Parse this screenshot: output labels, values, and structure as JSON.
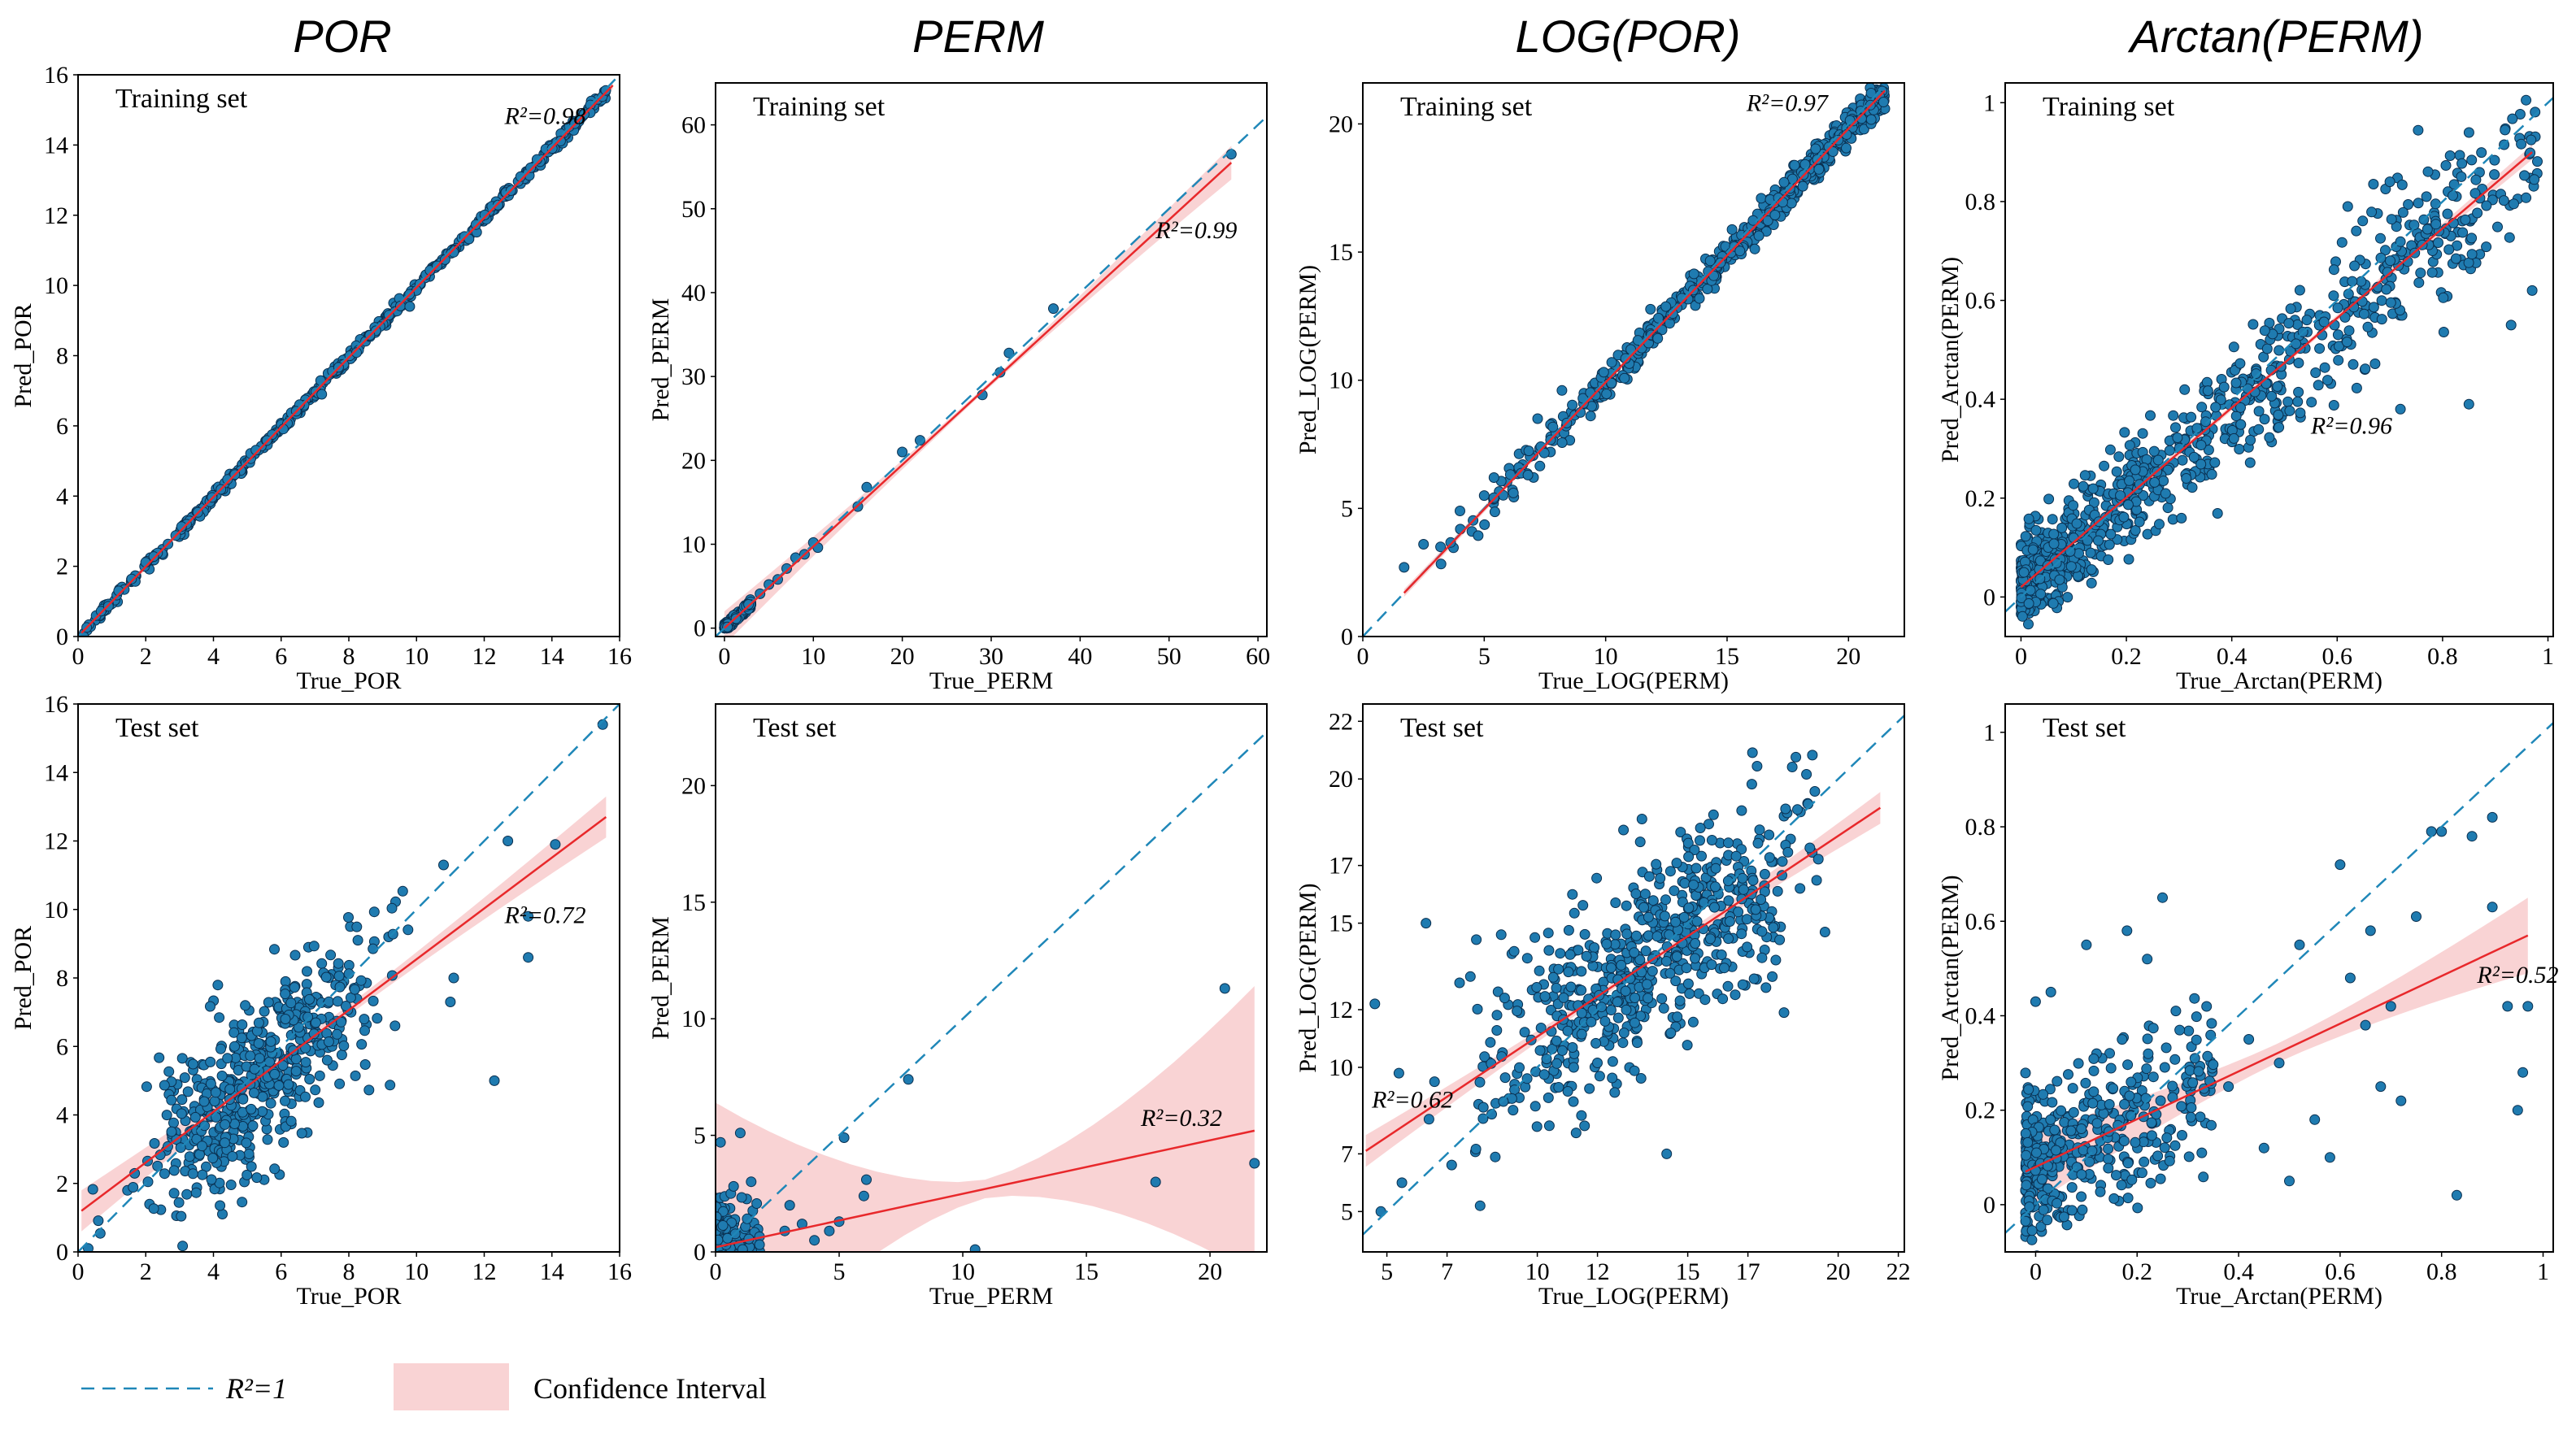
{
  "colors": {
    "point_fill": "#1f7bb0",
    "point_stroke": "#0a2f4f",
    "ideal_line": "#1f87b8",
    "fit_line": "#e8282b",
    "ci_fill": "#f7c4c6"
  },
  "columns": [
    "POR",
    "PERM",
    "LOG(POR)",
    "Arctan(PERM)"
  ],
  "legend": {
    "ideal_label": "R²=1",
    "ci_label": "Confidence Interval"
  },
  "chart_data": [
    {
      "type": "scatter",
      "panel": "Training set",
      "column": "POR",
      "xlabel": "True_POR",
      "ylabel": "Pred_POR",
      "xlim": [
        0,
        16
      ],
      "ylim": [
        0,
        16
      ],
      "xticks": [
        0,
        2,
        4,
        6,
        8,
        10,
        12,
        14,
        16
      ],
      "yticks": [
        0,
        2,
        4,
        6,
        8,
        10,
        12,
        14,
        16
      ],
      "r2": "R²=0.98",
      "r2_pos": [
        12.6,
        14.6
      ],
      "fit": {
        "x": [
          0.1,
          15.8
        ],
        "y": [
          0.1,
          15.7
        ]
      },
      "ci": [
        0.05,
        0.1
      ],
      "gen": {
        "n": 500,
        "xmin": 0.1,
        "xmax": 15.6,
        "noise": 0.08,
        "dist": "uniform",
        "seed": 11
      },
      "points": [
        [
          9.8,
          9.4
        ],
        [
          7.2,
          6.9
        ],
        [
          1.2,
          1.3
        ]
      ]
    },
    {
      "type": "scatter",
      "panel": "Training set",
      "column": "PERM",
      "xlabel": "True_PERM",
      "ylabel": "Pred_PERM",
      "xlim": [
        -1,
        61
      ],
      "ylim": [
        -1,
        65
      ],
      "xticks": [
        0,
        10,
        20,
        30,
        40,
        50,
        60
      ],
      "yticks": [
        0,
        10,
        20,
        30,
        40,
        50,
        60
      ],
      "r2": "R²=0.99",
      "r2_pos": [
        48.5,
        46.5
      ],
      "fit": {
        "x": [
          0,
          57
        ],
        "y": [
          0,
          55.5
        ]
      },
      "ci": [
        0.3,
        2.0
      ],
      "gen": {
        "n": 260,
        "xmin": 0,
        "xmax": 3,
        "noise": 0.25,
        "dist": "low",
        "seed": 22
      },
      "points": [
        [
          4,
          4.1
        ],
        [
          5,
          5.2
        ],
        [
          6,
          5.8
        ],
        [
          7,
          7.1
        ],
        [
          8,
          8.4
        ],
        [
          9,
          8.8
        ],
        [
          10,
          10.2
        ],
        [
          10.5,
          9.6
        ],
        [
          15,
          14.5
        ],
        [
          16,
          16.8
        ],
        [
          20,
          21.0
        ],
        [
          22,
          22.4
        ],
        [
          29,
          27.8
        ],
        [
          31,
          30.5
        ],
        [
          32,
          32.8
        ],
        [
          37,
          38.1
        ],
        [
          57,
          56.5
        ]
      ]
    },
    {
      "type": "scatter",
      "panel": "Training set",
      "column": "LOG(POR)",
      "xlabel": "True_LOG(PERM)",
      "ylabel": "Pred_LOG(PERM)",
      "xlim": [
        0,
        22.3
      ],
      "ylim": [
        0,
        21.6
      ],
      "xticks": [
        0,
        5,
        10,
        15,
        20
      ],
      "yticks": [
        0,
        5,
        10,
        15,
        20
      ],
      "r2": "R²=0.97",
      "r2_pos": [
        15.8,
        20.5
      ],
      "fit": {
        "x": [
          1.7,
          21.5
        ],
        "y": [
          1.7,
          21.3
        ]
      },
      "ci": [
        0.08,
        0.15
      ],
      "gen": {
        "n": 600,
        "xmin": 2.5,
        "xmax": 21.5,
        "noise": 0.35,
        "dist": "high",
        "seed": 33
      },
      "points": [
        [
          1.7,
          2.7
        ],
        [
          2.5,
          3.6
        ],
        [
          3.2,
          3.5
        ],
        [
          4,
          4.9
        ],
        [
          5,
          5.5
        ],
        [
          6.2,
          5.6
        ],
        [
          7.2,
          8.5
        ],
        [
          8.2,
          9.6
        ],
        [
          6.8,
          6.3
        ],
        [
          5.4,
          6.2
        ]
      ]
    },
    {
      "type": "scatter",
      "panel": "Training set",
      "column": "Arctan(PERM)",
      "xlabel": "True_Arctan(PERM)",
      "ylabel": "Pred_Arctan(PERM)",
      "xlim": [
        -0.03,
        1.01
      ],
      "ylim": [
        -0.08,
        1.04
      ],
      "xticks": [
        0.0,
        0.2,
        0.4,
        0.6,
        0.8,
        1.0
      ],
      "yticks": [
        0.0,
        0.2,
        0.4,
        0.6,
        0.8,
        1.0
      ],
      "r2": "R²=0.96",
      "r2_pos": [
        0.55,
        0.33
      ],
      "fit": {
        "x": [
          0.0,
          0.97
        ],
        "y": [
          0.02,
          0.9
        ]
      },
      "ci": [
        0.005,
        0.015
      ],
      "gen": {
        "n": 900,
        "xmin": 0.0,
        "xmax": 0.98,
        "noise": 0.045,
        "noise_slope": 0.05,
        "dist": "low",
        "seed": 44
      },
      "points": [
        [
          0.85,
          0.39
        ],
        [
          0.72,
          0.38
        ],
        [
          0.7,
          0.84
        ],
        [
          0.62,
          0.79
        ],
        [
          0.93,
          0.55
        ],
        [
          0.97,
          0.62
        ]
      ]
    },
    {
      "type": "scatter",
      "panel": "Test set",
      "column": "POR",
      "xlabel": "True_POR",
      "ylabel": "Pred_POR",
      "xlim": [
        0,
        16
      ],
      "ylim": [
        0,
        16
      ],
      "xticks": [
        0,
        2,
        4,
        6,
        8,
        10,
        12,
        14,
        16
      ],
      "yticks": [
        0,
        2,
        4,
        6,
        8,
        10,
        12,
        14,
        16
      ],
      "r2": "R²=0.72",
      "r2_pos": [
        12.6,
        9.6
      ],
      "fit": {
        "x": [
          0.1,
          15.6
        ],
        "y": [
          1.2,
          12.7
        ]
      },
      "ci": [
        0.15,
        0.6
      ],
      "gen": {
        "n": 520,
        "xmin": 0.1,
        "xmax": 10.5,
        "noise": 1.25,
        "dist": "mid",
        "seed": 55
      },
      "points": [
        [
          12.3,
          5.0
        ],
        [
          13.3,
          8.6
        ],
        [
          13.3,
          9.8
        ],
        [
          12.7,
          12.0
        ],
        [
          14.1,
          11.9
        ],
        [
          15.5,
          15.4
        ],
        [
          11.1,
          8.0
        ],
        [
          11.0,
          7.3
        ],
        [
          10.8,
          11.3
        ],
        [
          0.3,
          0.1
        ]
      ]
    },
    {
      "type": "scatter",
      "panel": "Test set",
      "column": "PERM",
      "xlabel": "True_PERM",
      "ylabel": "Pred_PERM",
      "xlim": [
        0,
        22.3
      ],
      "ylim": [
        0,
        23.5
      ],
      "xticks": [
        0,
        5,
        10,
        15,
        20
      ],
      "yticks": [
        0,
        5,
        10,
        15,
        20
      ],
      "r2": "R²=0.32",
      "r2_pos": [
        17.2,
        5.4
      ],
      "fit": {
        "x": [
          0,
          21.8
        ],
        "y": [
          0.2,
          5.2
        ]
      },
      "ci": [
        0.4,
        6.2
      ],
      "gen": {
        "n": 180,
        "xmin": 0,
        "xmax": 1.8,
        "noise": 1.1,
        "dist": "low",
        "seed": 66
      },
      "points": [
        [
          1.0,
          5.1
        ],
        [
          0.2,
          4.7
        ],
        [
          2.8,
          0.9
        ],
        [
          3.0,
          2.0
        ],
        [
          3.5,
          1.2
        ],
        [
          4.0,
          0.5
        ],
        [
          5.0,
          1.3
        ],
        [
          5.2,
          4.9
        ],
        [
          6.0,
          2.4
        ],
        [
          6.1,
          3.1
        ],
        [
          7.8,
          7.4
        ],
        [
          10.5,
          0.1
        ],
        [
          17.8,
          3.0
        ],
        [
          20.6,
          11.3
        ],
        [
          21.8,
          3.8
        ],
        [
          4.6,
          0.9
        ]
      ]
    },
    {
      "type": "scatter",
      "panel": "Test set",
      "column": "LOG(POR)",
      "xlabel": "True_LOG(PERM)",
      "ylabel": "Pred_LOG(PERM)",
      "xlim": [
        4.2,
        22.2
      ],
      "ylim": [
        3.6,
        22.6
      ],
      "xticks": [
        5,
        7,
        10,
        12,
        15,
        17,
        20,
        22
      ],
      "yticks": [
        5,
        7,
        10,
        12,
        15,
        17,
        20,
        22
      ],
      "r2": "R²=0.62",
      "r2_pos": [
        4.5,
        8.6
      ],
      "fit": {
        "x": [
          4.3,
          21.4
        ],
        "y": [
          7.1,
          19.0
        ]
      },
      "ci": [
        0.12,
        0.55
      ],
      "gen": {
        "n": 600,
        "xmin": 6.0,
        "xmax": 21.4,
        "noise": 1.7,
        "dist": "mid",
        "seed": 77
      },
      "points": [
        [
          4.6,
          12.2
        ],
        [
          4.8,
          5.0
        ],
        [
          5.5,
          6.0
        ],
        [
          5.4,
          9.8
        ],
        [
          6.4,
          8.2
        ],
        [
          6.3,
          15.0
        ],
        [
          8.1,
          5.2
        ],
        [
          8.8,
          14.6
        ],
        [
          14.3,
          7.0
        ],
        [
          18.2,
          11.9
        ]
      ]
    },
    {
      "type": "scatter",
      "panel": "Test set",
      "column": "Arctan(PERM)",
      "xlabel": "True_Arctan(PERM)",
      "ylabel": "Pred_Arctan(PERM)",
      "xlim": [
        -0.06,
        1.02
      ],
      "ylim": [
        -0.1,
        1.06
      ],
      "xticks": [
        0.0,
        0.2,
        0.4,
        0.6,
        0.8,
        1.0
      ],
      "yticks": [
        0.0,
        0.2,
        0.4,
        0.6,
        0.8,
        1.0
      ],
      "r2": "R²=0.52",
      "r2_pos": [
        0.87,
        0.47
      ],
      "fit": {
        "x": [
          -0.02,
          0.97
        ],
        "y": [
          0.07,
          0.57
        ]
      },
      "ci": [
        0.02,
        0.08
      ],
      "gen": {
        "n": 420,
        "xmin": -0.02,
        "xmax": 0.35,
        "noise": 0.09,
        "dist": "low",
        "seed": 88
      },
      "points": [
        [
          0.45,
          0.12
        ],
        [
          0.52,
          0.55
        ],
        [
          0.6,
          0.72
        ],
        [
          0.58,
          0.1
        ],
        [
          0.66,
          0.58
        ],
        [
          0.7,
          0.42
        ],
        [
          0.75,
          0.61
        ],
        [
          0.78,
          0.79
        ],
        [
          0.8,
          0.79
        ],
        [
          0.83,
          0.02
        ],
        [
          0.86,
          0.78
        ],
        [
          0.9,
          0.82
        ],
        [
          0.9,
          0.63
        ],
        [
          0.93,
          0.42
        ],
        [
          0.95,
          0.2
        ],
        [
          0.96,
          0.28
        ],
        [
          0.97,
          0.42
        ],
        [
          0.42,
          0.35
        ],
        [
          0.48,
          0.3
        ],
        [
          0.55,
          0.18
        ],
        [
          0.62,
          0.48
        ],
        [
          0.68,
          0.25
        ],
        [
          0.72,
          0.22
        ],
        [
          0.65,
          0.38
        ],
        [
          0.5,
          0.05
        ],
        [
          0.38,
          0.25
        ],
        [
          0.25,
          0.65
        ],
        [
          0.22,
          0.52
        ],
        [
          0.18,
          0.58
        ],
        [
          0.1,
          0.55
        ],
        [
          0.03,
          0.45
        ],
        [
          0.0,
          0.43
        ]
      ]
    }
  ]
}
